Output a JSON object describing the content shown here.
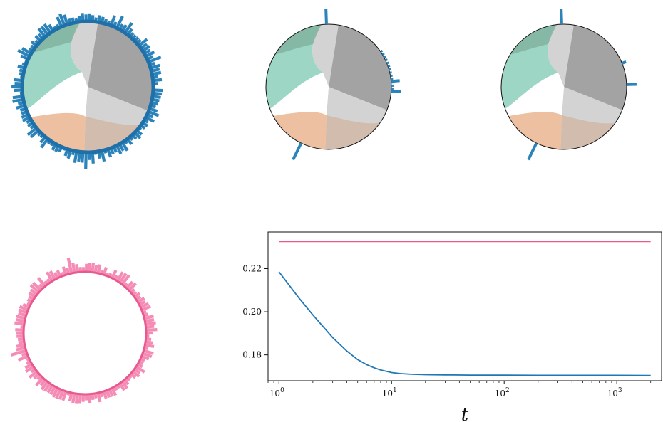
{
  "colors": {
    "blue": "#2b83ba",
    "blue_dark": "#1f6fa8",
    "pink": "#e85a8e",
    "pink_light": "#f48cb5",
    "teal": "#9dd6c4",
    "teal_dark": "#7fae9c",
    "orange": "#ecc0a0",
    "orange_dark": "#d1a98e",
    "gray_light": "#d3d3d3",
    "gray_mid": "#bdbdbd",
    "gray_dark": "#a3a3a3",
    "line_pink": "#e85a8e",
    "line_blue": "#1f77b4"
  },
  "chart_data": [
    {
      "type": "circular_histogram",
      "panel": "top-left",
      "color": "blue",
      "description_in_image": "dense circular histogram of angles around a partitioned circle"
    },
    {
      "type": "circular_histogram",
      "panel": "top-middle",
      "color": "blue",
      "spikes_angles_deg": [
        92,
        5,
        -4,
        -116
      ]
    },
    {
      "type": "circular_histogram",
      "panel": "top-right",
      "color": "blue",
      "spikes_angles_deg": [
        92,
        22,
        2,
        -116
      ]
    },
    {
      "type": "circular_histogram",
      "panel": "bottom-left",
      "color": "pink"
    },
    {
      "type": "line",
      "panel": "bottom-right",
      "x_scale": "log",
      "xlim": [
        0.8,
        2500
      ],
      "ylim": [
        0.168,
        0.237
      ],
      "xlabel": "t",
      "ylabel": "",
      "x_ticks": [
        {
          "value": 1,
          "base": "10",
          "exp": "0"
        },
        {
          "value": 10,
          "base": "10",
          "exp": "1"
        },
        {
          "value": 100,
          "base": "10",
          "exp": "2"
        },
        {
          "value": 1000,
          "base": "10",
          "exp": "3"
        }
      ],
      "y_ticks": [
        "0.18",
        "0.20",
        "0.22"
      ],
      "y_tick_values": [
        0.18,
        0.2,
        0.22
      ],
      "series": [
        {
          "color": "pink",
          "x": [
            1,
            2000
          ],
          "y": [
            0.2326,
            0.2326
          ]
        },
        {
          "color": "blue",
          "x": [
            1,
            1.5,
            2,
            3,
            4,
            5,
            6,
            7,
            8,
            10,
            12,
            15,
            20,
            30,
            50,
            100,
            200,
            500,
            1000,
            2000
          ],
          "y": [
            0.2185,
            0.2065,
            0.1985,
            0.188,
            0.1818,
            0.1778,
            0.1755,
            0.174,
            0.173,
            0.1718,
            0.1713,
            0.171,
            0.1708,
            0.1707,
            0.1706,
            0.1706,
            0.1705,
            0.1705,
            0.1705,
            0.1704
          ]
        }
      ]
    }
  ]
}
